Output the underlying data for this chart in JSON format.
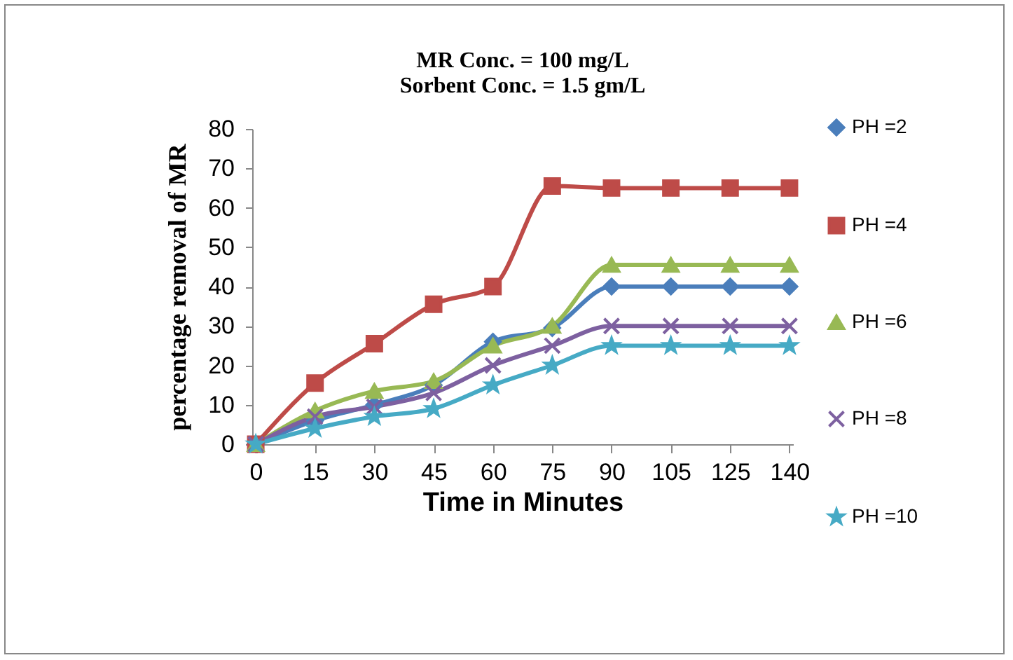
{
  "chart_data": {
    "type": "line",
    "title": "MR Conc. = 100 mg/L",
    "subtitle": "Sorbent Conc. = 1.5 gm/L",
    "xlabel": "Time in Minutes",
    "ylabel": "percentage removal of MR",
    "categories": [
      "0",
      "15",
      "30",
      "45",
      "60",
      "75",
      "90",
      "105",
      "125",
      "140"
    ],
    "series": [
      {
        "name": "PH =2",
        "color": "#4a7ebb",
        "marker": "diamond",
        "values": [
          0,
          6,
          10,
          15,
          26,
          29.5,
          40,
          40,
          40,
          40
        ]
      },
      {
        "name": "PH =4",
        "color": "#be4b48",
        "marker": "square",
        "values": [
          0,
          15.5,
          25.5,
          35.5,
          40,
          65.5,
          65,
          65,
          65,
          65
        ]
      },
      {
        "name": "PH =6",
        "color": "#98b954",
        "marker": "triangle",
        "values": [
          0,
          8.5,
          13.5,
          16,
          25,
          30,
          45.5,
          45.5,
          45.5,
          45.5
        ]
      },
      {
        "name": "PH =8",
        "color": "#7d60a0",
        "marker": "cross",
        "values": [
          0,
          7,
          9.5,
          13,
          20,
          25,
          30,
          30,
          30,
          30
        ]
      },
      {
        "name": "PH =10",
        "color": "#46aac5",
        "marker": "star",
        "values": [
          0,
          4,
          7,
          9,
          15,
          20,
          25,
          25,
          25,
          25
        ]
      }
    ],
    "ylim": [
      0,
      80
    ],
    "yticks": [
      0,
      10,
      20,
      30,
      40,
      50,
      60,
      70,
      80
    ],
    "grid": false,
    "legend": "right",
    "line_style": "solid"
  }
}
